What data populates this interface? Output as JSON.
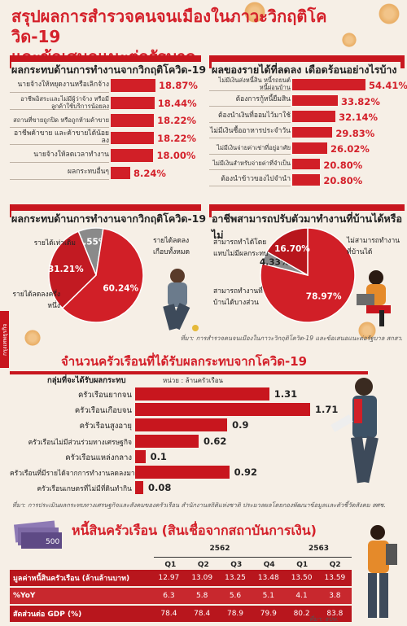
{
  "header": {
    "title_line1": "สรุปผลการสำรวจคนจนเมืองในภาวะวิกฤติโควิด-19",
    "title_line2": "และข้อเสนอแนะต่อรัฐบาล"
  },
  "side_tab": "กรุงเทพธุรกิจ",
  "chart_data": [
    {
      "type": "bar",
      "title": "ผลกระทบด้านการทำงานจากวิกฤติโควิด-19",
      "categories": [
        "นายจ้างให้หยุดงานหรือเลิกจ้าง",
        "อาชีพอิสระและไม่มีผู้ว่าจ้าง หรือมีลูกค้าใช้บริการน้อยลง",
        "สถานที่ขายถูกปิด หรือถูกห้ามค้าขาย",
        "อาชีพค้าขาย และค้าขายได้น้อยลง",
        "นายจ้างให้ลดเวลาทำงาน",
        "ผลกระทบอื่นๆ"
      ],
      "values": [
        18.87,
        18.44,
        18.22,
        18.22,
        18.0,
        8.24
      ],
      "value_labels": [
        "18.87%",
        "18.44%",
        "18.22%",
        "18.22%",
        "18.00%",
        "8.24%"
      ]
    },
    {
      "type": "bar",
      "title": "ผลของรายได้ที่ลดลง เดือดร้อนอย่างไรบ้าง",
      "categories": [
        "ไม่มีเงินส่งหนี้สิน หนี้รถยนต์ หนี้ผ่อนบ้าน",
        "ต้องการกู้หนี้ยืมสิน",
        "ต้องนำเงินที่ออมไว้มาใช้",
        "ไม่มีเงินซื้ออาหารประจำวัน",
        "ไม่มีเงินจ่ายค่าเช่าที่อยู่อาศัย",
        "ไม่มีเงินสำหรับจ่ายค่าที่จำเป็น",
        "ต้องนำข้าวของไปจำนำ"
      ],
      "values": [
        54.41,
        33.82,
        32.14,
        29.83,
        26.02,
        20.8,
        20.8
      ],
      "value_labels": [
        "54.41%",
        "33.82%",
        "32.14%",
        "29.83%",
        "26.02%",
        "20.80%",
        "20.80%"
      ]
    },
    {
      "type": "pie",
      "title": "ผลกระทบด้านการทำงานจากวิกฤติโควิด-19",
      "labels": [
        "รายได้เท่าเดิม",
        "รายได้ลดลงเกือบทั้งหมด",
        "รายได้ลดลงครึ่งหนึ่ง"
      ],
      "values": [
        8.55,
        60.24,
        31.21
      ],
      "value_labels": [
        "8.55%",
        "60.24%",
        "31.21%"
      ],
      "colors": [
        "#8a8a8a",
        "#d11f27",
        "#c21a22"
      ]
    },
    {
      "type": "pie",
      "title": "อาชีพสามารถปรับตัวมาทำงานที่บ้านได้หรือไม่",
      "labels": [
        "ไม่สามารถทำงานที่บ้านได้",
        "สามารถทำได้โดยแทบไม่มีผลกระทบ",
        "สามารถทำงานที่บ้านได้บางส่วน"
      ],
      "values": [
        78.97,
        4.33,
        16.7
      ],
      "value_labels": [
        "78.97%",
        "4.33%",
        "16.70%"
      ],
      "colors": [
        "#d11f27",
        "#8a8a8a",
        "#b8161d"
      ]
    },
    {
      "type": "bar",
      "title": "จำนวนครัวเรือนที่ได้รับผลกระทบจากโควิด-19",
      "xlabel": "กลุ่มที่จะได้รับผลกระทบ",
      "ylabel": "หน่วย : ล้านครัวเรือน",
      "categories": [
        "ครัวเรือนยากจน",
        "ครัวเรือนเกือบจน",
        "ครัวเรือนสูงอายุ",
        "ครัวเรือนไม่มีส่วนร่วมทางเศรษฐกิจ",
        "ครัวเรือนแหล่งกลาง",
        "ครัวเรือนที่มีรายได้จากการทำงานลดลงมาก",
        "ครัวเรือนเกษตรที่ไม่มีที่ดินทำกิน"
      ],
      "values": [
        1.31,
        1.71,
        0.9,
        0.62,
        0.1,
        0.92,
        0.08
      ],
      "value_labels": [
        "1.31",
        "1.71",
        "0.9",
        "0.62",
        "0.1",
        "0.92",
        "0.08"
      ]
    },
    {
      "type": "table",
      "title": "หนี้สินครัวเรือน",
      "subtitle": "(สินเชื่อจากสถาบันการเงิน)",
      "years": [
        "2562",
        "2563"
      ],
      "quarters": [
        "Q1",
        "Q2",
        "Q3",
        "Q4",
        "Q1",
        "Q2"
      ],
      "rows": [
        {
          "label": "มูลค่าหนี้สินครัวเรือน (ล้านล้านบาท)",
          "values": [
            "12.97",
            "13.09",
            "13.25",
            "13.48",
            "13.50",
            "13.59"
          ]
        },
        {
          "label": "%YoY",
          "values": [
            "6.3",
            "5.8",
            "5.6",
            "5.1",
            "4.1",
            "3.8"
          ]
        },
        {
          "label": "สัดส่วนต่อ GDP (%)",
          "values": [
            "78.4",
            "78.4",
            "78.9",
            "79.9",
            "80.2",
            "83.8"
          ]
        }
      ]
    }
  ],
  "sources": {
    "survey": "ที่มา: การสำรวจคนจนเมืองในภาวะวิกฤติโควิด-19 และข้อเสนอแนะต่อรัฐบาล สกสว.",
    "households": "ที่มา: การประเมินผลกระทบทางเศรษฐกิจและสังคมของครัวเรือน สำนักงานสถิติแห่งชาติ ประมวลผลโดยกองพัฒนาข้อมูลและตัวชี้วัดสังคม สศช.",
    "debt": "ที่มา: ธปท."
  },
  "debt_money_label": "500",
  "colors": {
    "accent": "#d4202a",
    "bar": "#d11f27",
    "band": "#c8161e",
    "table_row": "#b8161d",
    "background": "#f6efe6"
  }
}
